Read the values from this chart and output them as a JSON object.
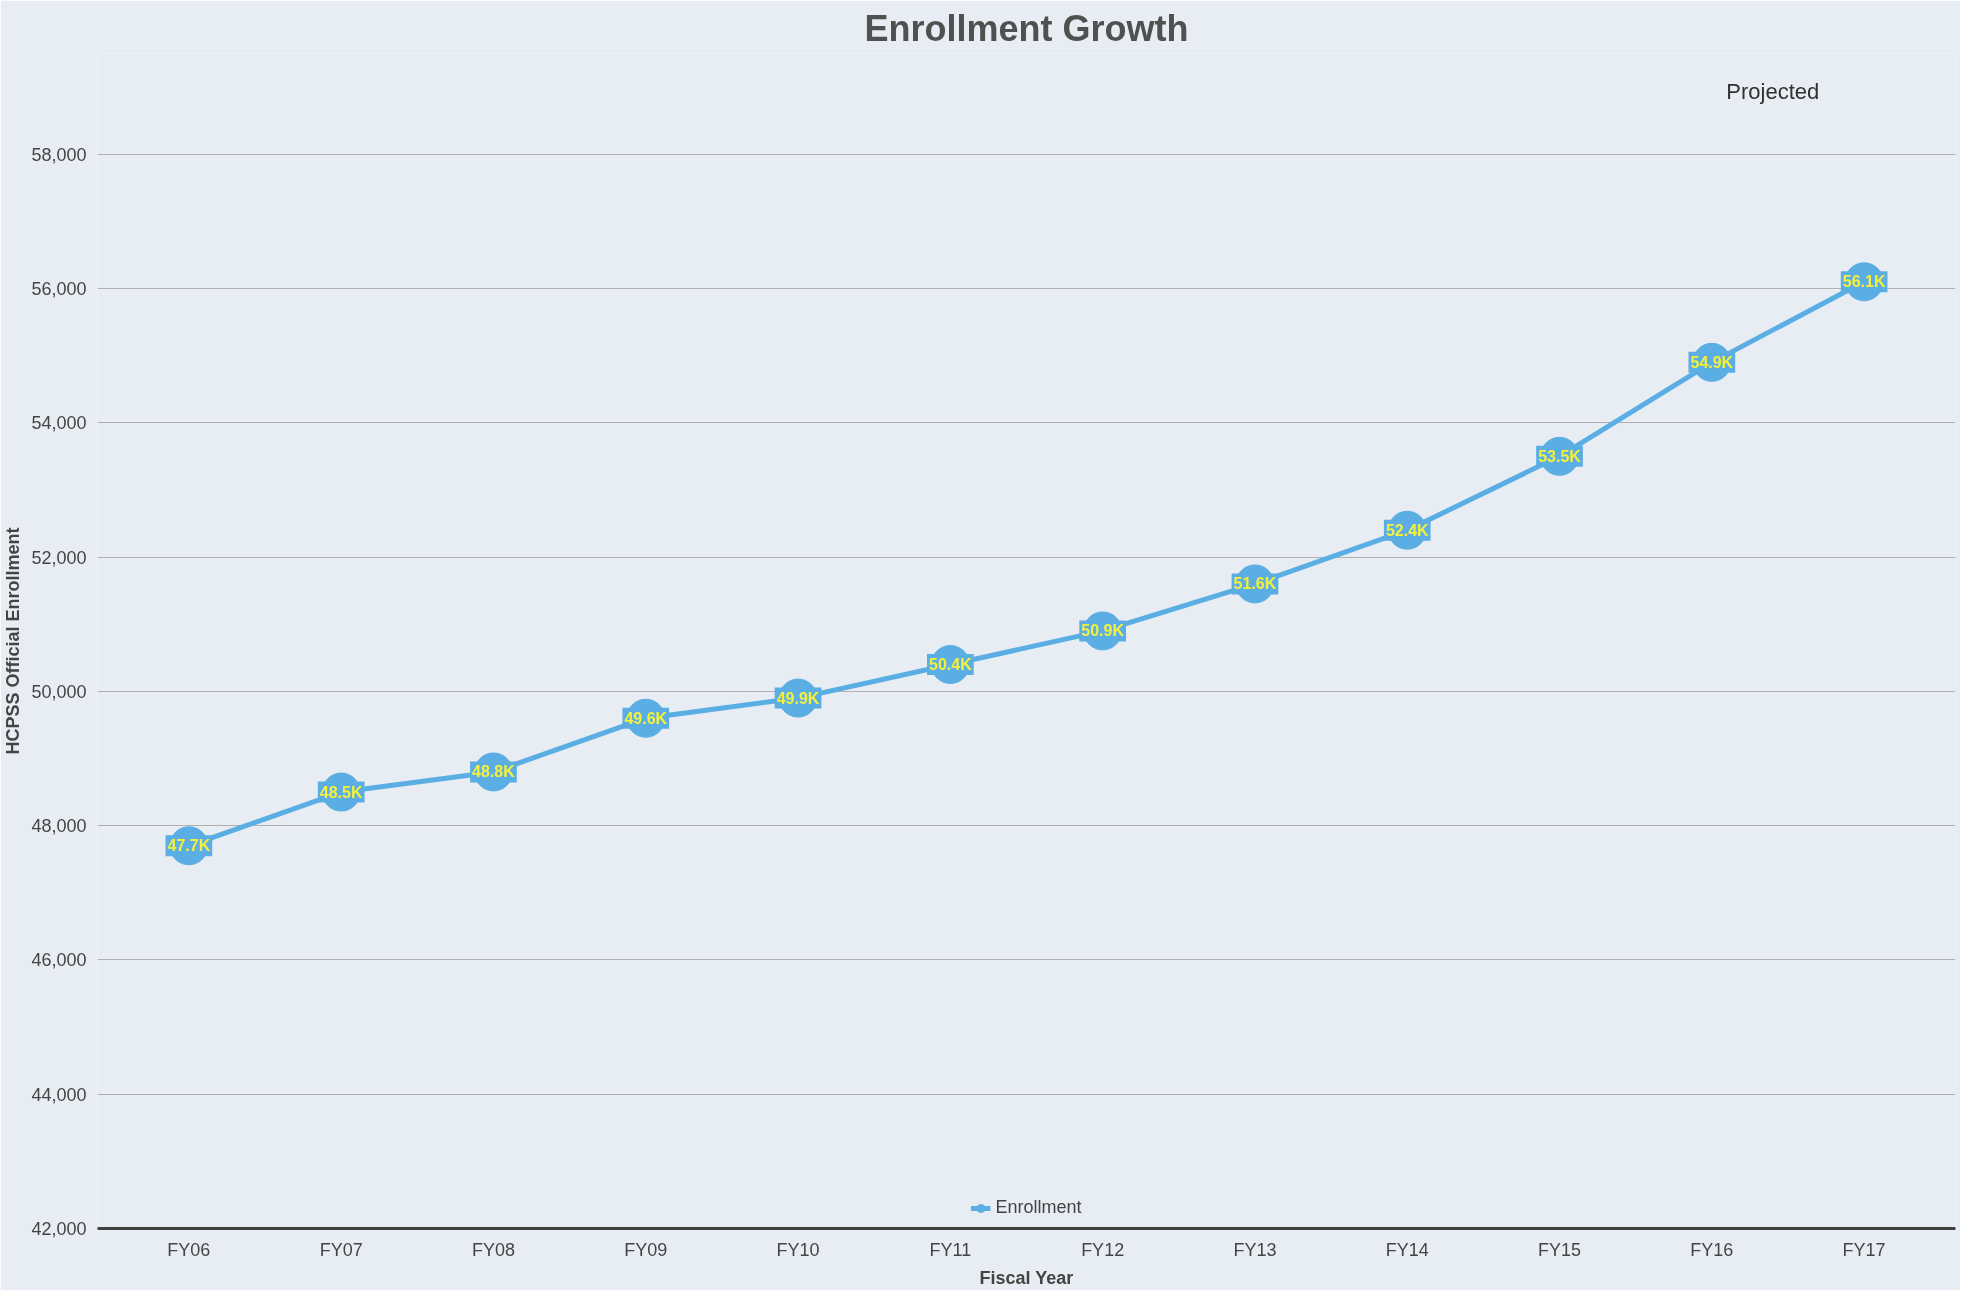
{
  "chart_data": {
    "type": "line",
    "title": "Enrollment Growth",
    "xlabel": "Fiscal Year",
    "ylabel": "HCPSS Official Enrollment",
    "categories": [
      "FY06",
      "FY07",
      "FY08",
      "FY09",
      "FY10",
      "FY11",
      "FY12",
      "FY13",
      "FY14",
      "FY15",
      "FY16",
      "FY17"
    ],
    "series": [
      {
        "name": "Enrollment",
        "color": "#5aaee3",
        "values": [
          47700,
          48500,
          48800,
          49600,
          49900,
          50400,
          50900,
          51600,
          52400,
          53500,
          54900,
          56100
        ],
        "value_labels": [
          "47.7K",
          "48.5K",
          "48.8K",
          "49.6K",
          "49.9K",
          "50.4K",
          "50.9K",
          "51.6K",
          "52.4K",
          "53.5K",
          "54.9K",
          "56.1K"
        ]
      }
    ],
    "ylim": [
      42000,
      59500
    ],
    "yticks": [
      {
        "value": 42000,
        "label": "42,000"
      },
      {
        "value": 44000,
        "label": "44,000"
      },
      {
        "value": 46000,
        "label": "46,000"
      },
      {
        "value": 48000,
        "label": "48,000"
      },
      {
        "value": 50000,
        "label": "50,000"
      },
      {
        "value": 52000,
        "label": "52,000"
      },
      {
        "value": 54000,
        "label": "54,000"
      },
      {
        "value": 56000,
        "label": "56,000"
      },
      {
        "value": 58000,
        "label": "58,000"
      }
    ],
    "annotations": [
      "Projected"
    ],
    "grid": "y",
    "legend": "bottom",
    "marker": "circle",
    "line_style": "solid"
  }
}
